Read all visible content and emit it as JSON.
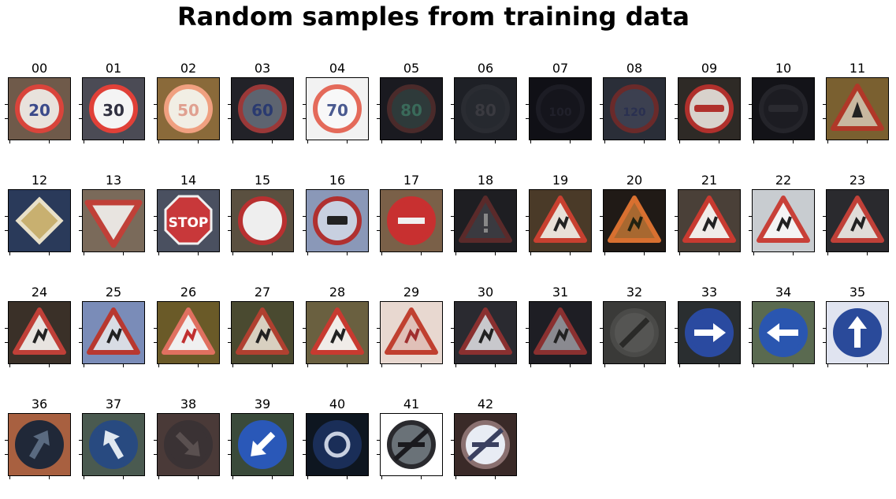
{
  "title": "Random samples from training data",
  "samples": [
    {
      "label": "00",
      "shape": "circle",
      "bg": "#6f5a4a",
      "face": "#e8e2dc",
      "rim": "#d9443b",
      "sym": "20",
      "symColor": "#3b4a8a"
    },
    {
      "label": "01",
      "shape": "circle",
      "bg": "#4b4b55",
      "face": "#f4f4f4",
      "rim": "#e04038",
      "sym": "30",
      "symColor": "#303040"
    },
    {
      "label": "02",
      "shape": "circle",
      "bg": "#8a6a3a",
      "face": "#f1eee4",
      "rim": "#f0a080",
      "sym": "50",
      "symColor": "#e0a090"
    },
    {
      "label": "03",
      "shape": "circle",
      "bg": "#222228",
      "face": "#5d6470",
      "rim": "#9a3838",
      "sym": "60",
      "symColor": "#2a3a70"
    },
    {
      "label": "04",
      "shape": "circle",
      "bg": "#f2f2f2",
      "face": "#f8f8f8",
      "rim": "#e46a5a",
      "sym": "70",
      "symColor": "#4a5a90"
    },
    {
      "label": "05",
      "shape": "circle",
      "bg": "#1a1a20",
      "face": "#2e3a3a",
      "rim": "#4a2a2a",
      "sym": "80",
      "symColor": "#3a6a5a"
    },
    {
      "label": "06",
      "shape": "circle",
      "bg": "#1e2026",
      "face": "#26292f",
      "rim": "#2a2c32",
      "sym": "80",
      "symColor": "#3a3a40"
    },
    {
      "label": "07",
      "shape": "circle",
      "bg": "#101016",
      "face": "#15151c",
      "rim": "#1c1c24",
      "sym": "100",
      "symColor": "#20202a"
    },
    {
      "label": "08",
      "shape": "circle",
      "bg": "#2a2e38",
      "face": "#3c4050",
      "rim": "#6a2a2a",
      "sym": "120",
      "symColor": "#2a3050"
    },
    {
      "label": "09",
      "shape": "circle",
      "bg": "#2e2a26",
      "face": "#d8d2cc",
      "rim": "#b0302c",
      "sym": "car2",
      "symColor": "#b0302c"
    },
    {
      "label": "10",
      "shape": "circle",
      "bg": "#131318",
      "face": "#1c1c22",
      "rim": "#24242a",
      "sym": "car2",
      "symColor": "#2a2a30"
    },
    {
      "label": "11",
      "shape": "triangle",
      "bg": "#7a6030",
      "face": "#c8b8a0",
      "rim": "#b03828",
      "sym": "cross",
      "symColor": "#222"
    },
    {
      "label": "12",
      "shape": "diamond",
      "bg": "#2a3a5a",
      "face": "#c8b070",
      "rim": "#e8e0c8",
      "sym": "",
      "symColor": "#000"
    },
    {
      "label": "13",
      "shape": "yield",
      "bg": "#7a6a5a",
      "face": "#e8e4e0",
      "rim": "#c04038",
      "sym": "",
      "symColor": "#000"
    },
    {
      "label": "14",
      "shape": "octagon",
      "bg": "#4a5060",
      "face": "#c8383a",
      "rim": "#f0f0f0",
      "sym": "STOP",
      "symColor": "#ffffff"
    },
    {
      "label": "15",
      "shape": "circle",
      "bg": "#5a5040",
      "face": "#eeeeee",
      "rim": "#b83030",
      "sym": "",
      "symColor": "#000"
    },
    {
      "label": "16",
      "shape": "circle",
      "bg": "#8a98b8",
      "face": "#c8d0e0",
      "rim": "#b03030",
      "sym": "truck",
      "symColor": "#222"
    },
    {
      "label": "17",
      "shape": "circle",
      "bg": "#7a6048",
      "face": "#c83030",
      "rim": "#c83030",
      "sym": "bar",
      "symColor": "#f0f0f0"
    },
    {
      "label": "18",
      "shape": "triangle",
      "bg": "#1e1e22",
      "face": "#3a3a40",
      "rim": "#5a2a2a",
      "sym": "!",
      "symColor": "#888"
    },
    {
      "label": "19",
      "shape": "triangle",
      "bg": "#4a3a28",
      "face": "#e8e0d8",
      "rim": "#c84030",
      "sym": "curve",
      "symColor": "#222"
    },
    {
      "label": "20",
      "shape": "triangle",
      "bg": "#201a16",
      "face": "#a86830",
      "rim": "#d87030",
      "sym": "curve",
      "symColor": "#221"
    },
    {
      "label": "21",
      "shape": "triangle",
      "bg": "#4a4038",
      "face": "#f0ece8",
      "rim": "#c83a30",
      "sym": "dbl",
      "symColor": "#222"
    },
    {
      "label": "22",
      "shape": "triangle",
      "bg": "#c8ccd0",
      "face": "#f4f4f4",
      "rim": "#c84038",
      "sym": "bump",
      "symColor": "#222"
    },
    {
      "label": "23",
      "shape": "triangle",
      "bg": "#2a2a2e",
      "face": "#e0dcd8",
      "rim": "#c04038",
      "sym": "slip",
      "symColor": "#222"
    },
    {
      "label": "24",
      "shape": "triangle",
      "bg": "#3a3028",
      "face": "#e8e4e0",
      "rim": "#c04038",
      "sym": "narrow",
      "symColor": "#222"
    },
    {
      "label": "25",
      "shape": "triangle",
      "bg": "#7a8cb8",
      "face": "#d8dce4",
      "rim": "#b83830",
      "sym": "work",
      "symColor": "#222"
    },
    {
      "label": "26",
      "shape": "triangle",
      "bg": "#6a5a28",
      "face": "#f0f0f0",
      "rim": "#e07060",
      "sym": "light",
      "symColor": "#c03030"
    },
    {
      "label": "27",
      "shape": "triangle",
      "bg": "#4a4a30",
      "face": "#d8d0c0",
      "rim": "#b04030",
      "sym": "ped",
      "symColor": "#222"
    },
    {
      "label": "28",
      "shape": "triangle",
      "bg": "#6a6040",
      "face": "#f0ece8",
      "rim": "#c83a30",
      "sym": "kids",
      "symColor": "#222"
    },
    {
      "label": "29",
      "shape": "triangle",
      "bg": "#e8d8d0",
      "face": "#e0c0b8",
      "rim": "#c04030",
      "sym": "bike",
      "symColor": "#a03030"
    },
    {
      "label": "30",
      "shape": "triangle",
      "bg": "#2a2a30",
      "face": "#c8c8cc",
      "rim": "#8a3030",
      "sym": "snow",
      "symColor": "#222"
    },
    {
      "label": "31",
      "shape": "triangle",
      "bg": "#1e1e24",
      "face": "#8a8a90",
      "rim": "#8a3030",
      "sym": "deer",
      "symColor": "#222"
    },
    {
      "label": "32",
      "shape": "circle",
      "bg": "#3a3a38",
      "face": "#555553",
      "rim": "#4a4a48",
      "sym": "slash",
      "symColor": "#2a2a28"
    },
    {
      "label": "33",
      "shape": "circle",
      "bg": "#2a2e30",
      "face": "#2a4aa0",
      "rim": "#2a4aa0",
      "sym": "right",
      "symColor": "#ffffff"
    },
    {
      "label": "34",
      "shape": "circle",
      "bg": "#5a6a50",
      "face": "#2a56b0",
      "rim": "#2a56b0",
      "sym": "left",
      "symColor": "#ffffff"
    },
    {
      "label": "35",
      "shape": "circle",
      "bg": "#e0e4f0",
      "face": "#2a4a9a",
      "rim": "#2a4a9a",
      "sym": "up",
      "symColor": "#ffffff"
    },
    {
      "label": "36",
      "shape": "circle",
      "bg": "#a86040",
      "face": "#202838",
      "rim": "#202838",
      "sym": "upright",
      "symColor": "#5a6a80"
    },
    {
      "label": "37",
      "shape": "circle",
      "bg": "#4a5a50",
      "face": "#284a80",
      "rim": "#284a80",
      "sym": "upleft",
      "symColor": "#e0e8f0"
    },
    {
      "label": "38",
      "shape": "circle",
      "bg": "#4a3a38",
      "face": "#3a3234",
      "rim": "#3a3234",
      "sym": "downright",
      "symColor": "#5a5050"
    },
    {
      "label": "39",
      "shape": "circle",
      "bg": "#3a4a3a",
      "face": "#2a58b8",
      "rim": "#2a58b8",
      "sym": "downleft",
      "symColor": "#ffffff"
    },
    {
      "label": "40",
      "shape": "circle",
      "bg": "#0e1620",
      "face": "#1a2e58",
      "rim": "#1a2e58",
      "sym": "round",
      "symColor": "#c8d0e0"
    },
    {
      "label": "41",
      "shape": "circle",
      "bg": "#ffffff",
      "face": "#6a7278",
      "rim": "#2a2a2e",
      "sym": "nopass",
      "symColor": "#1a1a1e"
    },
    {
      "label": "42",
      "shape": "circle",
      "bg": "#3a2a28",
      "face": "#e8ecf4",
      "rim": "#8a7070",
      "sym": "nopass",
      "symColor": "#3a4060"
    }
  ]
}
